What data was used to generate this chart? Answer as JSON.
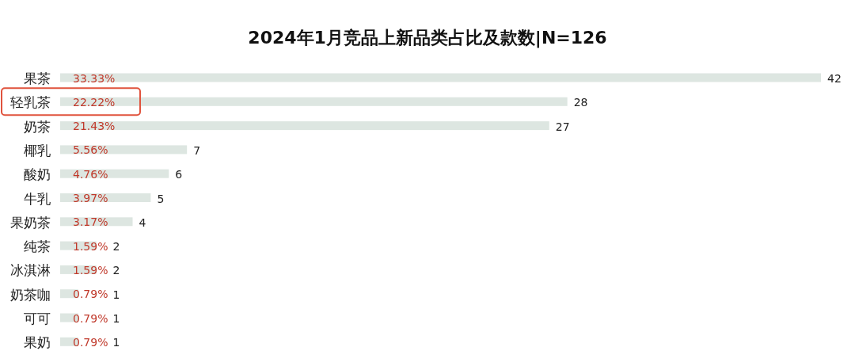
{
  "chart_data": {
    "type": "bar",
    "orientation": "horizontal",
    "title": "2024年1月竞品上新品类占比及款数|N=126",
    "categories": [
      "果茶",
      "轻乳茶",
      "奶茶",
      "椰乳",
      "酸奶",
      "牛乳",
      "果奶茶",
      "纯茶",
      "冰淇淋",
      "奶茶咖",
      "可可",
      "果奶"
    ],
    "values": [
      42,
      28,
      27,
      7,
      6,
      5,
      4,
      2,
      2,
      1,
      1,
      1
    ],
    "color": "#dde6e1",
    "data_labels": true,
    "annotations": [
      "33.33%",
      "22.22%",
      "21.43%",
      "5.56%",
      "4.76%",
      "3.97%",
      "3.17%",
      "1.59%",
      "1.59%",
      "0.79%",
      "0.79%",
      "0.79%"
    ]
  }
}
